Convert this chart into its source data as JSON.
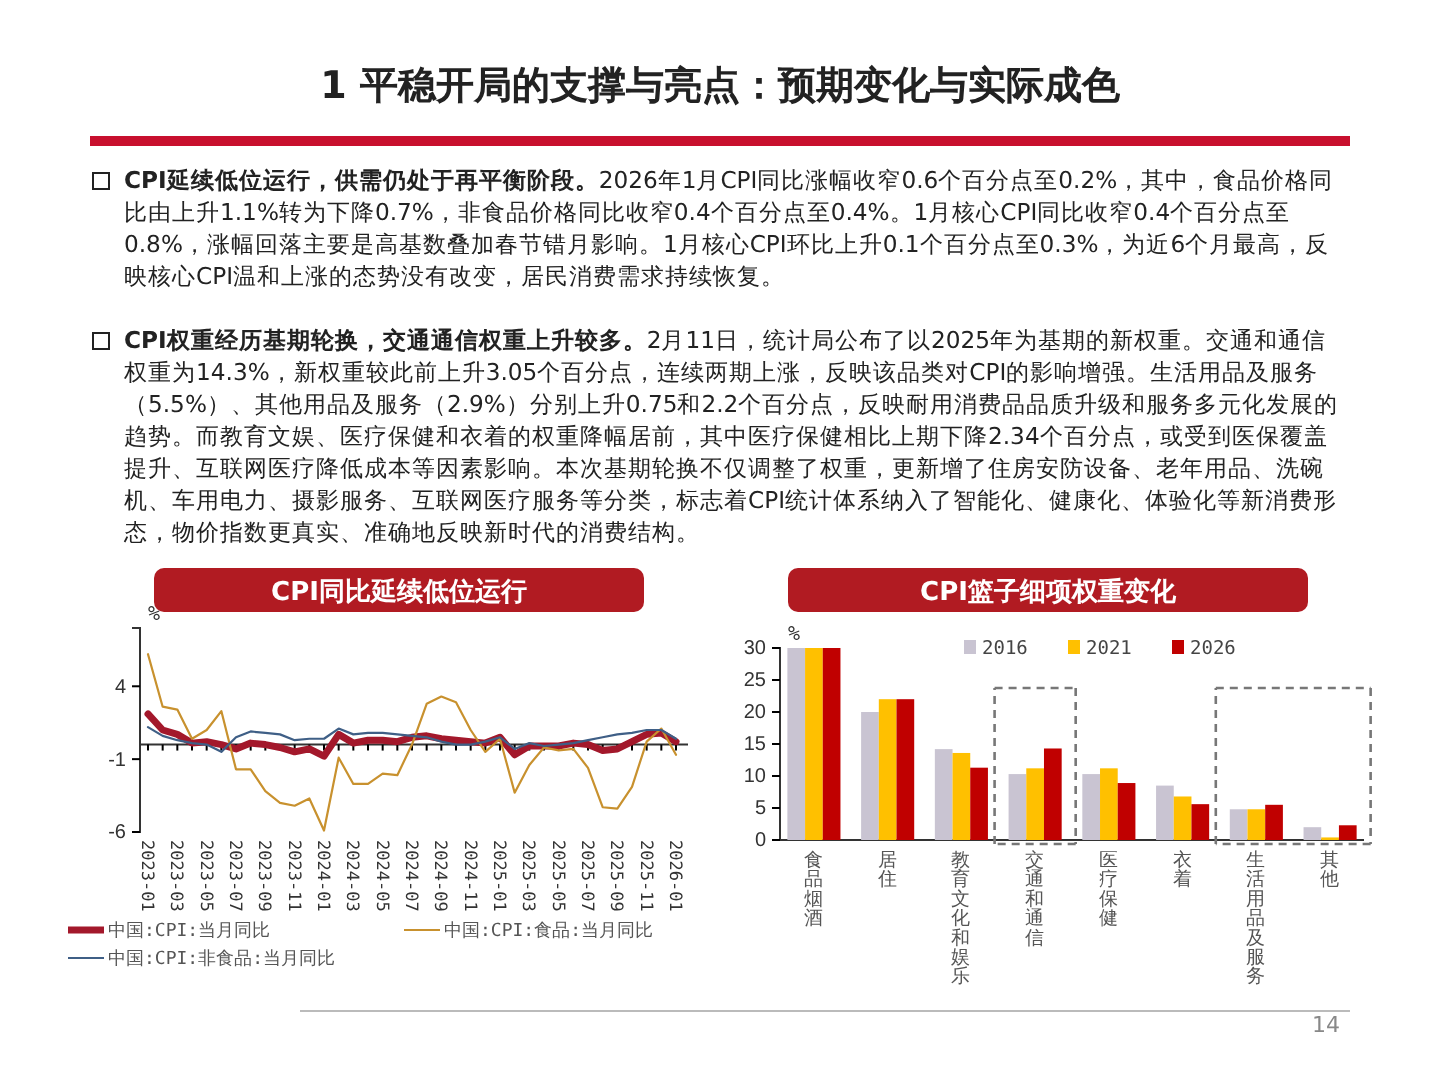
{
  "chart_data": [
    {
      "type": "other",
      "title": "1 平稳开局的支撑与亮点：预期变化与实际成色",
      "annotations": [
        "CPI延续低位运行，供需仍处于再平衡阶段。",
        "2026年1月CPI同比涨幅收窄0.6个百分点至0.2%，其中，食品价格同比由上升1.1%转为下降0.7%，非食品价格同比收窄0.4个百分点至0.4%。1月核心CPI同比收窄0.4个百分点至0.8%，涨幅回落主要是高基数叠加春节错月影响。1月核心CPI环比上升0.1个百分点至0.3%，为近6个月最高，反映核心CPI温和上涨的态势没有改变，居民消费需求持续恢复。",
        "CPI权重经历基期轮换，交通通信权重上升较多。",
        "2月11日，统计局公布了以2025年为基期的新权重。交通和通信权重为14.3%，新权重较此前上升3.05个百分点，连续两期上涨，反映该品类对CPI的影响增强。生活用品及服务（5.5%）、其他用品及服务（2.9%）分别上升0.75和2.2个百分点，反映耐用消费品品质升级和服务多元化发展的趋势。而教育文娱、医疗保健和衣着的权重降幅居前，其中医疗保健相比上期下降2.34个百分点，或受到医保覆盖提升、互联网医疗降低成本等因素影响。本次基期轮换不仅调整了权重，更新增了住房安防设备、老年用品、洗碗机、车用电力、摄影服务、互联网医疗服务等分类，标志着CPI统计体系纳入了智能化、健康化、体验化等新消费形态，物价指数更真实、准确地反映新时代的消费结构。",
        "14"
      ]
    },
    {
      "type": "line",
      "title": "CPI同比延续低位运行",
      "ylabel": "%",
      "ylim": [
        -6,
        8
      ],
      "yticks": [
        4,
        -1,
        -6
      ],
      "legend": "bottom",
      "categories": [
        "2023-01",
        null,
        "2023-03",
        null,
        "2023-05",
        null,
        "2023-07",
        null,
        "2023-09",
        null,
        "2023-11",
        null,
        "2024-01",
        null,
        "2024-03",
        null,
        "2024-05",
        null,
        "2024-07",
        null,
        "2024-09",
        null,
        "2024-11",
        null,
        "2025-01",
        null,
        "2025-03",
        null,
        "2025-05",
        null,
        "2025-07",
        null,
        "2025-09",
        null,
        "2025-11",
        null,
        "2026-01"
      ],
      "series": [
        {
          "name": "中国:CPI:当月同比",
          "color": "#a3182b",
          "values": [
            2.1,
            1.0,
            0.7,
            0.1,
            0.2,
            0.0,
            -0.3,
            0.1,
            0.0,
            -0.2,
            -0.5,
            -0.3,
            -0.8,
            0.7,
            0.1,
            0.3,
            0.3,
            0.2,
            0.5,
            0.6,
            0.4,
            0.3,
            0.2,
            0.1,
            0.5,
            -0.7,
            -0.1,
            -0.1,
            -0.1,
            0.1,
            0.0,
            -0.4,
            -0.3,
            0.2,
            0.7,
            0.8,
            0.2
          ]
        },
        {
          "name": "中国:CPI:食品:当月同比",
          "color": "#c8912e",
          "values": [
            6.2,
            2.6,
            2.4,
            0.4,
            1.0,
            2.3,
            -1.7,
            -1.7,
            -3.2,
            -4.0,
            -4.2,
            -3.7,
            -5.9,
            -0.9,
            -2.7,
            -2.7,
            -2.0,
            -2.1,
            0.0,
            2.8,
            3.3,
            2.9,
            1.0,
            -0.5,
            0.4,
            -3.3,
            -1.4,
            -0.2,
            -0.4,
            -0.3,
            -1.6,
            -4.3,
            -4.4,
            -2.9,
            0.2,
            1.1,
            -0.7
          ]
        },
        {
          "name": "中国:CPI:非食品:当月同比",
          "color": "#3f5f86",
          "values": [
            1.2,
            0.6,
            0.3,
            0.1,
            0.0,
            -0.5,
            0.5,
            0.9,
            0.8,
            0.7,
            0.3,
            0.4,
            0.4,
            1.1,
            0.7,
            0.8,
            0.8,
            0.7,
            0.6,
            0.5,
            0.2,
            0.0,
            0.0,
            0.2,
            0.5,
            -0.3,
            0.1,
            -0.1,
            0.0,
            0.1,
            0.3,
            0.5,
            0.7,
            0.8,
            1.0,
            1.0,
            0.4
          ]
        }
      ]
    },
    {
      "type": "bar",
      "title": "CPI篮子细项权重变化",
      "ylabel": "%",
      "ylim": [
        0,
        30
      ],
      "yticks": [
        0,
        5,
        10,
        15,
        20,
        25,
        30
      ],
      "legend": "top",
      "categories": [
        "食品烟酒",
        "居住",
        "教育文化和娱乐",
        "交通和通信",
        "医疗保健",
        "衣着",
        "生活用品及服务",
        "其他"
      ],
      "series": [
        {
          "name": "2016",
          "color": "#c9c4d2",
          "values": [
            30,
            20,
            14.2,
            10.3,
            10.3,
            8.5,
            4.8,
            2.0
          ]
        },
        {
          "name": "2021",
          "color": "#ffc000",
          "values": [
            30,
            22,
            13.6,
            11.2,
            11.2,
            6.8,
            4.8,
            0.4
          ]
        },
        {
          "name": "2026",
          "color": "#c00000",
          "values": [
            30,
            22,
            11.3,
            14.3,
            8.9,
            5.6,
            5.5,
            2.3
          ]
        }
      ]
    }
  ]
}
